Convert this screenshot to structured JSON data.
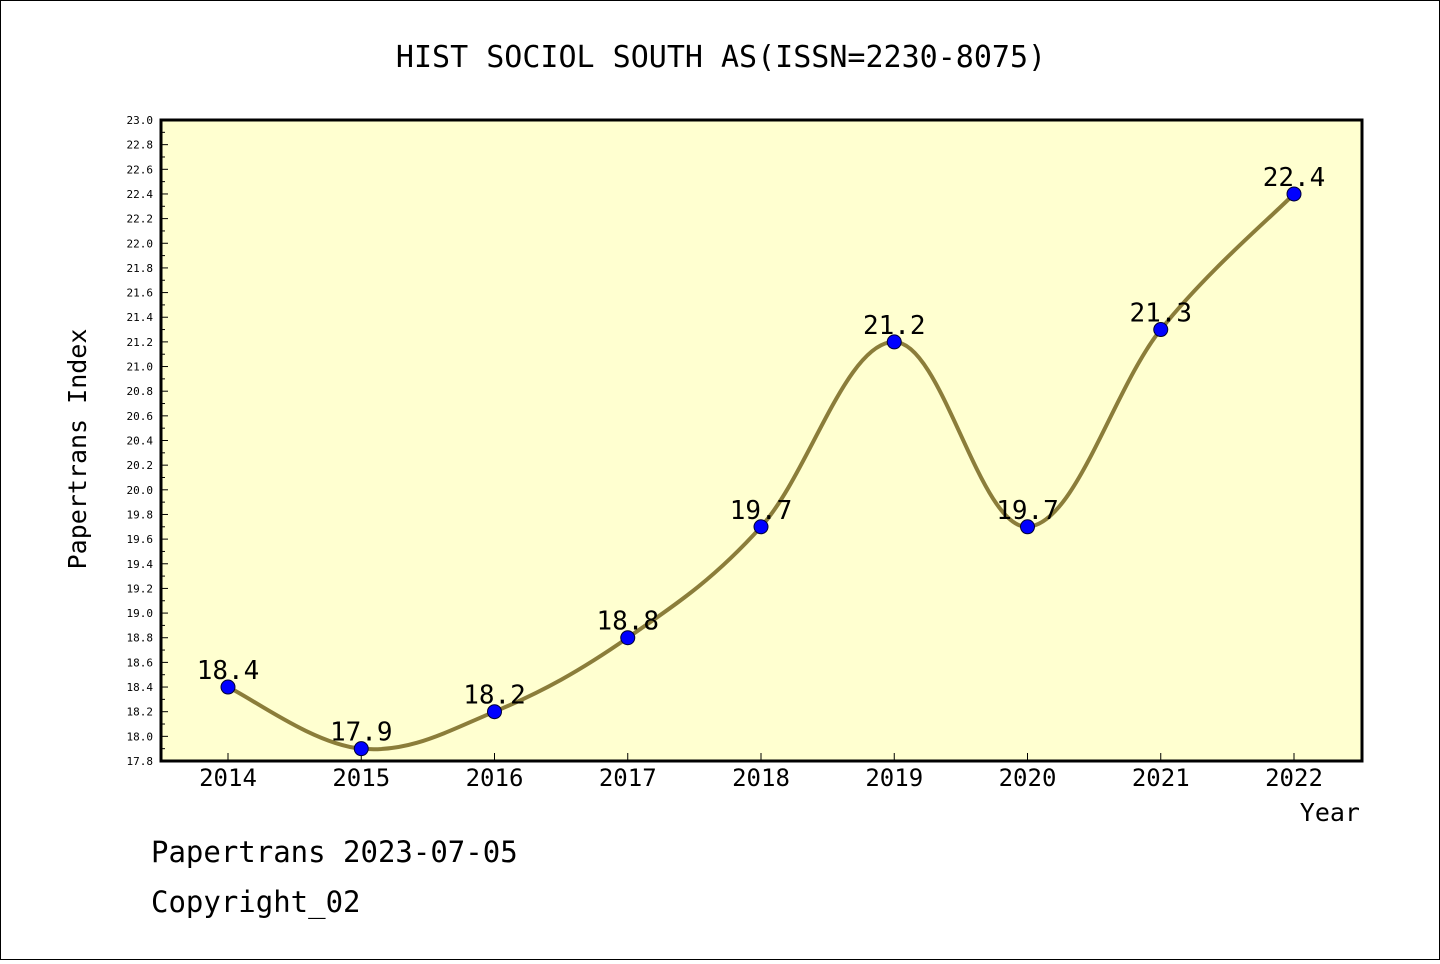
{
  "chart_data": {
    "type": "line",
    "title": "HIST SOCIOL SOUTH AS(ISSN=2230-8075)",
    "xlabel": "Year",
    "ylabel": "Papertrans Index",
    "categories": [
      "2014",
      "2015",
      "2016",
      "2017",
      "2018",
      "2019",
      "2020",
      "2021",
      "2022"
    ],
    "values": [
      18.4,
      17.9,
      18.2,
      18.8,
      19.7,
      21.2,
      19.7,
      21.3,
      22.4
    ],
    "data_labels": [
      "18.4",
      "17.9",
      "18.2",
      "18.8",
      "19.7",
      "21.2",
      "19.7",
      "21.3",
      "22.4"
    ],
    "ylim": [
      17.8,
      23.0
    ],
    "y_ticks": [
      "17.8",
      "18.0",
      "18.2",
      "18.4",
      "18.6",
      "18.8",
      "19.0",
      "19.2",
      "19.4",
      "19.6",
      "19.8",
      "20.0",
      "20.2",
      "20.4",
      "20.6",
      "20.8",
      "21.0",
      "21.2",
      "21.4",
      "21.6",
      "21.8",
      "22.0",
      "22.2",
      "22.4",
      "22.6",
      "22.8",
      "23.0"
    ],
    "grid": false,
    "colors": {
      "plot_background": "#ffffd0",
      "line": "#8b7d3a",
      "marker": "#0000ff"
    }
  },
  "footer": {
    "line1": "Papertrans 2023-07-05",
    "line2": "Copyright_02"
  }
}
